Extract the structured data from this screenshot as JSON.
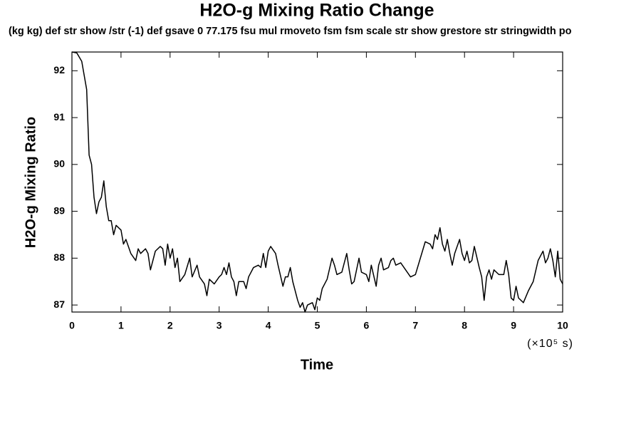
{
  "chart_data": {
    "type": "line",
    "title": "H2O-g Mixing Ratio Change",
    "subtitle": "(kg kg) def str show /str (-1) def gsave 0 77.175 fsu mul rmoveto fsm fsm scale str show grestore str stringwidth po",
    "x_label": "Time",
    "x_units": "(×10⁵ s)",
    "y_label": "H2O-g Mixing Ratio",
    "color": "#000000",
    "xlim": [
      0,
      10
    ],
    "xticks": [
      0,
      1,
      2,
      3,
      4,
      5,
      6,
      7,
      8,
      9,
      10
    ],
    "ylim": [
      86.85,
      92.4
    ],
    "yticks": [
      87,
      88,
      89,
      90,
      91,
      92
    ],
    "grid": false,
    "x": [
      0,
      0.1,
      0.2,
      0.3,
      0.35,
      0.4,
      0.45,
      0.5,
      0.55,
      0.6,
      0.65,
      0.7,
      0.75,
      0.8,
      0.85,
      0.9,
      1.0,
      1.05,
      1.1,
      1.2,
      1.3,
      1.35,
      1.4,
      1.5,
      1.55,
      1.6,
      1.7,
      1.8,
      1.85,
      1.9,
      1.95,
      2.0,
      2.05,
      2.1,
      2.15,
      2.2,
      2.3,
      2.4,
      2.45,
      2.55,
      2.6,
      2.7,
      2.75,
      2.8,
      2.9,
      3.0,
      3.05,
      3.1,
      3.15,
      3.2,
      3.25,
      3.3,
      3.35,
      3.4,
      3.5,
      3.55,
      3.6,
      3.7,
      3.8,
      3.85,
      3.9,
      3.95,
      4.0,
      4.05,
      4.15,
      4.2,
      4.3,
      4.35,
      4.4,
      4.45,
      4.5,
      4.6,
      4.65,
      4.7,
      4.75,
      4.8,
      4.9,
      4.95,
      5.0,
      5.05,
      5.1,
      5.2,
      5.3,
      5.35,
      5.4,
      5.5,
      5.6,
      5.65,
      5.7,
      5.75,
      5.8,
      5.85,
      5.9,
      6.0,
      6.05,
      6.1,
      6.2,
      6.25,
      6.3,
      6.35,
      6.45,
      6.5,
      6.55,
      6.6,
      6.7,
      6.8,
      6.9,
      7.0,
      7.1,
      7.2,
      7.3,
      7.35,
      7.4,
      7.45,
      7.5,
      7.55,
      7.6,
      7.65,
      7.7,
      7.75,
      7.8,
      7.9,
      7.95,
      8.0,
      8.05,
      8.1,
      8.15,
      8.2,
      8.3,
      8.35,
      8.4,
      8.45,
      8.5,
      8.55,
      8.6,
      8.7,
      8.8,
      8.85,
      8.9,
      8.95,
      9.0,
      9.05,
      9.1,
      9.2,
      9.3,
      9.4,
      9.5,
      9.6,
      9.65,
      9.7,
      9.75,
      9.8,
      9.85,
      9.9,
      9.95,
      10.0
    ],
    "values": [
      92.4,
      92.38,
      92.2,
      91.6,
      90.2,
      90.0,
      89.3,
      88.95,
      89.2,
      89.3,
      89.65,
      89.1,
      88.8,
      88.8,
      88.5,
      88.7,
      88.6,
      88.3,
      88.4,
      88.1,
      87.95,
      88.2,
      88.1,
      88.2,
      88.1,
      87.75,
      88.15,
      88.25,
      88.2,
      87.85,
      88.3,
      88.0,
      88.2,
      87.8,
      88.0,
      87.5,
      87.65,
      88.0,
      87.6,
      87.85,
      87.6,
      87.45,
      87.2,
      87.55,
      87.45,
      87.6,
      87.65,
      87.8,
      87.65,
      87.9,
      87.6,
      87.5,
      87.2,
      87.5,
      87.5,
      87.35,
      87.6,
      87.8,
      87.85,
      87.8,
      88.1,
      87.8,
      88.15,
      88.25,
      88.1,
      87.85,
      87.4,
      87.6,
      87.6,
      87.8,
      87.5,
      87.1,
      86.95,
      87.05,
      86.85,
      87.0,
      87.05,
      86.9,
      87.15,
      87.1,
      87.35,
      87.55,
      88.0,
      87.85,
      87.65,
      87.7,
      88.1,
      87.75,
      87.45,
      87.5,
      87.75,
      88.0,
      87.7,
      87.65,
      87.5,
      87.85,
      87.4,
      87.85,
      88.0,
      87.75,
      87.8,
      87.95,
      88.0,
      87.85,
      87.9,
      87.75,
      87.6,
      87.65,
      88.0,
      88.35,
      88.3,
      88.2,
      88.5,
      88.4,
      88.65,
      88.3,
      88.15,
      88.4,
      88.1,
      87.85,
      88.1,
      88.4,
      88.1,
      87.95,
      88.15,
      87.9,
      87.95,
      88.25,
      87.8,
      87.6,
      87.1,
      87.6,
      87.75,
      87.55,
      87.75,
      87.65,
      87.65,
      87.95,
      87.65,
      87.15,
      87.1,
      87.4,
      87.15,
      87.05,
      87.3,
      87.5,
      87.95,
      88.15,
      87.9,
      88.0,
      88.2,
      87.95,
      87.6,
      88.15,
      87.55,
      87.45
    ]
  }
}
